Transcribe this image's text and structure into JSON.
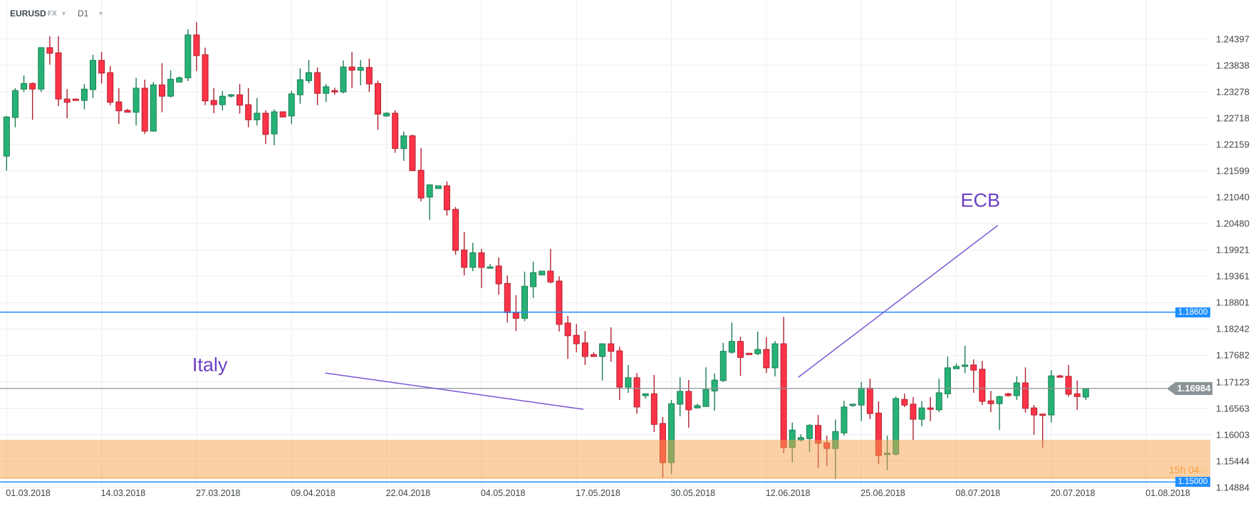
{
  "header": {
    "symbol": "EURUSD",
    "market": "FX",
    "timeframe": "D1"
  },
  "colors": {
    "up": "#26b276",
    "up_border": "#1a7d53",
    "down": "#ff3347",
    "down_border": "#b0202e",
    "grid": "#efefef",
    "level": "#1e8fff",
    "current": "#8a9396",
    "zone": "#f5a24a",
    "annotation": "#7b55d6"
  },
  "chart_data": {
    "type": "candlestick",
    "title": "EURUSD",
    "ylim": [
      1.1449,
      1.2522
    ],
    "grid": true,
    "y_ticks": [
      "1.24397",
      "1.23838",
      "1.23278",
      "1.22718",
      "1.22159",
      "1.21599",
      "1.21040",
      "1.20480",
      "1.19921",
      "1.19361",
      "1.18801",
      "1.18242",
      "1.17682",
      "1.17123",
      "1.16563",
      "1.16003",
      "1.15444",
      "1.14884"
    ],
    "x_ticks": [
      {
        "index": 0,
        "label": "01.03.2018"
      },
      {
        "index": 11,
        "label": "14.03.2018"
      },
      {
        "index": 22,
        "label": "27.03.2018"
      },
      {
        "index": 33,
        "label": "09.04.2018"
      },
      {
        "index": 44,
        "label": "22.04.2018"
      },
      {
        "index": 55,
        "label": "04.05.2018"
      },
      {
        "index": 66,
        "label": "17.05.2018"
      },
      {
        "index": 77,
        "label": "30.05.2018"
      },
      {
        "index": 88,
        "label": "12.06.2018"
      },
      {
        "index": 99,
        "label": "25.06.2018"
      },
      {
        "index": 110,
        "label": "08.07.2018"
      },
      {
        "index": 121,
        "label": "20.07.2018"
      },
      {
        "index": 132,
        "label": "01.08.2018"
      }
    ],
    "ohlc_fields": [
      "open",
      "high",
      "low",
      "close"
    ],
    "ohlc": [
      [
        1.2191,
        1.2276,
        1.216,
        1.2274
      ],
      [
        1.2273,
        1.2335,
        1.2252,
        1.233
      ],
      [
        1.2333,
        1.2362,
        1.2327,
        1.2345
      ],
      [
        1.2345,
        1.2347,
        1.2268,
        1.2333
      ],
      [
        1.2333,
        1.2422,
        1.2327,
        1.2421
      ],
      [
        1.2421,
        1.2445,
        1.2385,
        1.2409
      ],
      [
        1.241,
        1.2445,
        1.2297,
        1.2312
      ],
      [
        1.2312,
        1.2333,
        1.2271,
        1.2305
      ],
      [
        1.2312,
        1.2312,
        1.2308,
        1.2309
      ],
      [
        1.2309,
        1.2344,
        1.229,
        1.2333
      ],
      [
        1.2332,
        1.2406,
        1.2314,
        1.2394
      ],
      [
        1.2394,
        1.2412,
        1.2345,
        1.2367
      ],
      [
        1.2368,
        1.2382,
        1.2299,
        1.2305
      ],
      [
        1.2306,
        1.2335,
        1.2259,
        1.2287
      ],
      [
        1.2288,
        1.2291,
        1.2284,
        1.2284
      ],
      [
        1.2284,
        1.2357,
        1.2256,
        1.2335
      ],
      [
        1.2335,
        1.2353,
        1.2238,
        1.2244
      ],
      [
        1.2244,
        1.2348,
        1.2243,
        1.2342
      ],
      [
        1.2342,
        1.2388,
        1.2284,
        1.2318
      ],
      [
        1.2318,
        1.2373,
        1.2315,
        1.2354
      ],
      [
        1.2348,
        1.236,
        1.2348,
        1.2357
      ],
      [
        1.2357,
        1.246,
        1.235,
        1.2448
      ],
      [
        1.2448,
        1.2475,
        1.2371,
        1.2404
      ],
      [
        1.2406,
        1.2421,
        1.2299,
        1.2308
      ],
      [
        1.2309,
        1.2335,
        1.2282,
        1.23
      ],
      [
        1.23,
        1.2329,
        1.2288,
        1.2318
      ],
      [
        1.2318,
        1.2323,
        1.2315,
        1.2321
      ],
      [
        1.2321,
        1.2344,
        1.2281,
        1.2299
      ],
      [
        1.23,
        1.2335,
        1.2252,
        1.2268
      ],
      [
        1.2268,
        1.2314,
        1.2256,
        1.2282
      ],
      [
        1.2282,
        1.2288,
        1.2217,
        1.2237
      ],
      [
        1.2238,
        1.229,
        1.2214,
        1.2285
      ],
      [
        1.2285,
        1.2285,
        1.2274,
        1.2274
      ],
      [
        1.2276,
        1.2329,
        1.2259,
        1.2323
      ],
      [
        1.2321,
        1.2377,
        1.2302,
        1.2353
      ],
      [
        1.2351,
        1.2395,
        1.2345,
        1.2368
      ],
      [
        1.2368,
        1.2379,
        1.2299,
        1.2324
      ],
      [
        1.2324,
        1.2344,
        1.2306,
        1.2338
      ],
      [
        1.233,
        1.2336,
        1.2321,
        1.2327
      ],
      [
        1.2327,
        1.2394,
        1.2324,
        1.238
      ],
      [
        1.238,
        1.2412,
        1.2335,
        1.2373
      ],
      [
        1.2373,
        1.2395,
        1.2341,
        1.2379
      ],
      [
        1.2379,
        1.2398,
        1.2327,
        1.2344
      ],
      [
        1.2345,
        1.2351,
        1.2247,
        1.228
      ],
      [
        1.2276,
        1.2284,
        1.2274,
        1.2282
      ],
      [
        1.2282,
        1.2288,
        1.2198,
        1.2207
      ],
      [
        1.2207,
        1.2243,
        1.2181,
        1.2234
      ],
      [
        1.2234,
        1.2237,
        1.216,
        1.216
      ],
      [
        1.2161,
        1.2208,
        1.2095,
        1.2102
      ],
      [
        1.2104,
        1.2131,
        1.2056,
        1.213
      ],
      [
        1.2122,
        1.2128,
        1.2122,
        1.2128
      ],
      [
        1.2128,
        1.2137,
        1.2065,
        1.2077
      ],
      [
        1.2078,
        1.2083,
        1.1982,
        1.1991
      ],
      [
        1.1992,
        1.203,
        1.1938,
        1.1955
      ],
      [
        1.1955,
        1.2007,
        1.1947,
        1.1986
      ],
      [
        1.1986,
        1.1994,
        1.1911,
        1.1955
      ],
      [
        1.1953,
        1.1962,
        1.1953,
        1.1956
      ],
      [
        1.1958,
        1.1976,
        1.1897,
        1.192
      ],
      [
        1.1921,
        1.1938,
        1.1838,
        1.1859
      ],
      [
        1.1859,
        1.1896,
        1.182,
        1.1847
      ],
      [
        1.1847,
        1.1946,
        1.1841,
        1.1915
      ],
      [
        1.1914,
        1.1967,
        1.189,
        1.1944
      ],
      [
        1.1939,
        1.1947,
        1.1939,
        1.1947
      ],
      [
        1.1947,
        1.1994,
        1.1921,
        1.1924
      ],
      [
        1.1926,
        1.1936,
        1.1819,
        1.1834
      ],
      [
        1.1837,
        1.1852,
        1.1761,
        1.181
      ],
      [
        1.1811,
        1.1835,
        1.1775,
        1.1793
      ],
      [
        1.1795,
        1.182,
        1.1748,
        1.1766
      ],
      [
        1.177,
        1.1775,
        1.1766,
        1.1766
      ],
      [
        1.1766,
        1.1793,
        1.1715,
        1.1793
      ],
      [
        1.1793,
        1.1828,
        1.1755,
        1.1777
      ],
      [
        1.1778,
        1.1787,
        1.1674,
        1.1701
      ],
      [
        1.1701,
        1.1748,
        1.1689,
        1.1721
      ],
      [
        1.1721,
        1.1731,
        1.1645,
        1.1659
      ],
      [
        1.1683,
        1.1687,
        1.1677,
        1.1687
      ],
      [
        1.1687,
        1.1727,
        1.1606,
        1.1622
      ],
      [
        1.1624,
        1.1638,
        1.1509,
        1.1541
      ],
      [
        1.1541,
        1.1674,
        1.1517,
        1.1666
      ],
      [
        1.1665,
        1.1722,
        1.1639,
        1.1692
      ],
      [
        1.1692,
        1.1716,
        1.1615,
        1.1653
      ],
      [
        1.1657,
        1.1666,
        1.1656,
        1.1662
      ],
      [
        1.166,
        1.1743,
        1.166,
        1.1696
      ],
      [
        1.1693,
        1.173,
        1.1651,
        1.1716
      ],
      [
        1.1715,
        1.1795,
        1.1712,
        1.1777
      ],
      [
        1.1775,
        1.1838,
        1.1772,
        1.1798
      ],
      [
        1.1798,
        1.1808,
        1.1725,
        1.1764
      ],
      [
        1.1773,
        1.1773,
        1.177,
        1.177
      ],
      [
        1.1772,
        1.1819,
        1.1769,
        1.1781
      ],
      [
        1.1781,
        1.1807,
        1.1731,
        1.1742
      ],
      [
        1.1742,
        1.1799,
        1.1724,
        1.1793
      ],
      [
        1.1793,
        1.185,
        1.1561,
        1.1573
      ],
      [
        1.1573,
        1.1626,
        1.1541,
        1.161
      ],
      [
        1.1589,
        1.1601,
        1.1585,
        1.1594
      ],
      [
        1.1592,
        1.1623,
        1.1564,
        1.162
      ],
      [
        1.162,
        1.1642,
        1.1529,
        1.1582
      ],
      [
        1.1583,
        1.1598,
        1.1534,
        1.1571
      ],
      [
        1.1571,
        1.1632,
        1.1506,
        1.1607
      ],
      [
        1.1604,
        1.1672,
        1.1598,
        1.1659
      ],
      [
        1.1662,
        1.1665,
        1.1659,
        1.1665
      ],
      [
        1.1663,
        1.1712,
        1.1629,
        1.1699
      ],
      [
        1.1699,
        1.1719,
        1.1633,
        1.1645
      ],
      [
        1.1646,
        1.1671,
        1.1538,
        1.1556
      ],
      [
        1.1558,
        1.1598,
        1.1525,
        1.1561
      ],
      [
        1.1559,
        1.1681,
        1.1556,
        1.1677
      ],
      [
        1.1675,
        1.1687,
        1.1659,
        1.1663
      ],
      [
        1.1665,
        1.168,
        1.1589,
        1.1633
      ],
      [
        1.1633,
        1.1671,
        1.1618,
        1.1657
      ],
      [
        1.1657,
        1.168,
        1.1629,
        1.1654
      ],
      [
        1.1653,
        1.1719,
        1.1648,
        1.1689
      ],
      [
        1.1687,
        1.1766,
        1.1678,
        1.1742
      ],
      [
        1.174,
        1.1751,
        1.174,
        1.1745
      ],
      [
        1.1745,
        1.1789,
        1.1731,
        1.1748
      ],
      [
        1.1748,
        1.176,
        1.1689,
        1.1737
      ],
      [
        1.1739,
        1.1757,
        1.1663,
        1.1671
      ],
      [
        1.1672,
        1.1693,
        1.1648,
        1.1666
      ],
      [
        1.1666,
        1.1683,
        1.161,
        1.1681
      ],
      [
        1.1687,
        1.1689,
        1.1681,
        1.1683
      ],
      [
        1.1683,
        1.1724,
        1.1674,
        1.171
      ],
      [
        1.171,
        1.1743,
        1.1647,
        1.1656
      ],
      [
        1.1657,
        1.1663,
        1.16,
        1.1642
      ],
      [
        1.1644,
        1.1644,
        1.1573,
        1.1641
      ],
      [
        1.1642,
        1.1737,
        1.1626,
        1.1725
      ],
      [
        1.1725,
        1.1727,
        1.1722,
        1.1722
      ],
      [
        1.1724,
        1.1748,
        1.1681,
        1.1686
      ],
      [
        1.1687,
        1.1715,
        1.1653,
        1.1681
      ],
      [
        1.168,
        1.1698,
        1.1674,
        1.16984
      ]
    ],
    "levels": [
      {
        "price": 1.186,
        "label": "1.18600"
      },
      {
        "price": 1.15,
        "label": "1.15000"
      }
    ],
    "current_price": {
      "price": 1.16984,
      "label": "1.16984"
    },
    "zone": {
      "from": 1.1508,
      "to": 1.15895
    },
    "countdown": {
      "value": "15h 04",
      "unit": "m"
    },
    "annotations": [
      {
        "text": "Italy",
        "text_at": [
          21.5,
          1.1748
        ],
        "line": [
          [
            36.9,
            1.1731
          ],
          [
            66.8,
            1.1654
          ]
        ]
      },
      {
        "text": "ECB",
        "text_at": [
          110.5,
          1.2096
        ],
        "line": [
          [
            91.7,
            1.1722
          ],
          [
            114.8,
            1.2044
          ]
        ]
      }
    ]
  }
}
